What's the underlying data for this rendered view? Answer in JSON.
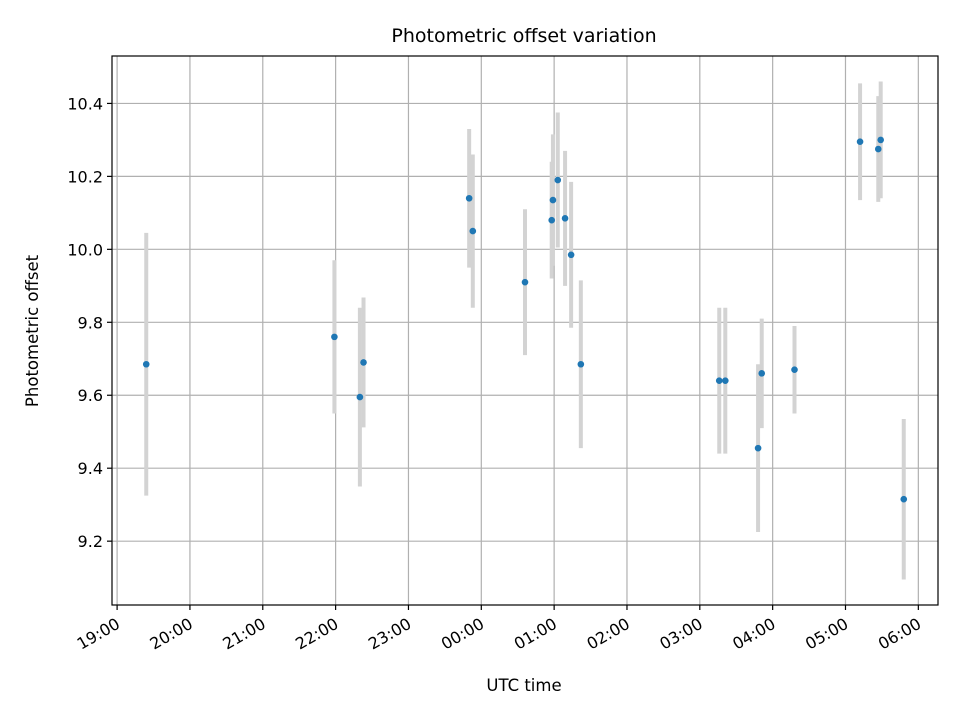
{
  "chart_data": {
    "type": "scatter",
    "title": "Photometric offset variation",
    "xlabel": "UTC time",
    "ylabel": "Photometric offset",
    "x_axis": "time",
    "xlim": [
      "18:55",
      "23:55+6:20"
    ],
    "x_range_hours": [
      18.93,
      30.27
    ],
    "ylim": [
      9.025,
      10.53
    ],
    "x_ticks": [
      "19:00",
      "20:00",
      "21:00",
      "22:00",
      "23:00",
      "00:00",
      "01:00",
      "02:00",
      "03:00",
      "04:00",
      "05:00",
      "06:00"
    ],
    "y_ticks": [
      "9.2",
      "9.4",
      "9.6",
      "9.8",
      "10.0",
      "10.2",
      "10.4"
    ],
    "grid": true,
    "colors": {
      "marker": "#1f77b4",
      "errorbar": "#d3d3d3",
      "grid": "#b0b0b0"
    },
    "points": [
      {
        "x": "19:24",
        "y": 9.685,
        "yerr": 0.36
      },
      {
        "x": "21:59",
        "y": 9.76,
        "yerr": 0.21
      },
      {
        "x": "22:20",
        "y": 9.595,
        "yerr": 0.245
      },
      {
        "x": "22:23",
        "y": 9.69,
        "yerr": 0.178
      },
      {
        "x": "23:50",
        "y": 10.14,
        "yerr": 0.19
      },
      {
        "x": "23:53",
        "y": 10.05,
        "yerr": 0.21
      },
      {
        "x": "00:36",
        "y": 9.91,
        "yerr": 0.2
      },
      {
        "x": "00:58",
        "y": 10.08,
        "yerr": 0.16
      },
      {
        "x": "00:59",
        "y": 10.135,
        "yerr": 0.18
      },
      {
        "x": "01:03",
        "y": 10.19,
        "yerr": 0.185
      },
      {
        "x": "01:09",
        "y": 10.085,
        "yerr": 0.185
      },
      {
        "x": "01:14",
        "y": 9.985,
        "yerr": 0.2
      },
      {
        "x": "01:22",
        "y": 9.685,
        "yerr": 0.23
      },
      {
        "x": "03:16",
        "y": 9.64,
        "yerr": 0.2
      },
      {
        "x": "03:21",
        "y": 9.64,
        "yerr": 0.2
      },
      {
        "x": "03:48",
        "y": 9.455,
        "yerr": 0.23
      },
      {
        "x": "03:51",
        "y": 9.66,
        "yerr": 0.15
      },
      {
        "x": "04:18",
        "y": 9.67,
        "yerr": 0.12
      },
      {
        "x": "05:12",
        "y": 10.295,
        "yerr": 0.16
      },
      {
        "x": "05:27",
        "y": 10.275,
        "yerr": 0.145
      },
      {
        "x": "05:29",
        "y": 10.3,
        "yerr": 0.16
      },
      {
        "x": "05:48",
        "y": 9.315,
        "yerr": 0.22
      }
    ]
  }
}
